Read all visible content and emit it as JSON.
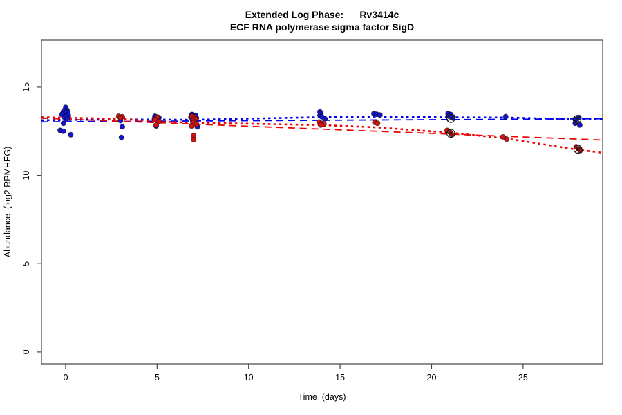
{
  "colors": {
    "blue_point": "#1515cc",
    "red_point": "#cc1414",
    "blue_line": "#0000ee",
    "red_line": "#ee0000",
    "point_edge": "#000000",
    "box_stroke": "#444444",
    "outlier_stroke": "#1a1a1a",
    "background": "#ffffff"
  },
  "chart_data": {
    "type": "scatter",
    "title": "Extended Log Phase:      Rv3414c",
    "subtitle": "ECF RNA polymerase sigma factor SigD",
    "xlabel": "Time  (days)",
    "ylabel": "Abundance  (log2 RPMHEG)",
    "x_ticks": [
      0,
      5,
      10,
      15,
      20,
      25
    ],
    "y_ticks": [
      0,
      5,
      10,
      15
    ],
    "xlim": [
      -1.32,
      29.35
    ],
    "ylim": [
      -0.67,
      17.66
    ],
    "grid": false,
    "legend": "none",
    "series": [
      {
        "name": "blue-condition",
        "color": "#1515cc",
        "marker": "filled-circle",
        "points": [
          [
            -0.15,
            13.52
          ],
          [
            0.0,
            13.85
          ],
          [
            0.07,
            13.7
          ],
          [
            -0.1,
            13.65
          ],
          [
            0.12,
            13.6
          ],
          [
            -0.02,
            13.55
          ],
          [
            -0.2,
            13.45
          ],
          [
            0.15,
            13.4
          ],
          [
            0.02,
            13.35
          ],
          [
            -0.08,
            13.3
          ],
          [
            0.1,
            13.22
          ],
          [
            -0.12,
            12.95
          ],
          [
            -0.3,
            12.55
          ],
          [
            -0.12,
            12.5
          ],
          [
            0.28,
            12.3
          ],
          [
            3.0,
            13.1
          ],
          [
            3.1,
            12.75
          ],
          [
            3.05,
            12.15
          ],
          [
            4.88,
            13.35
          ],
          [
            5.0,
            13.3
          ],
          [
            5.1,
            13.27
          ],
          [
            4.85,
            13.2
          ],
          [
            5.05,
            13.15
          ],
          [
            4.95,
            12.8
          ],
          [
            6.9,
            13.45
          ],
          [
            7.1,
            13.4
          ],
          [
            7.0,
            13.35
          ],
          [
            6.85,
            13.3
          ],
          [
            7.15,
            13.25
          ],
          [
            7.0,
            13.15
          ],
          [
            6.95,
            13.05
          ],
          [
            7.05,
            12.95
          ],
          [
            6.9,
            12.82
          ],
          [
            7.2,
            12.75
          ],
          [
            13.9,
            13.6
          ],
          [
            13.95,
            13.5
          ],
          [
            13.9,
            13.4
          ],
          [
            14.0,
            13.32
          ],
          [
            14.18,
            13.2
          ],
          [
            16.85,
            13.5
          ],
          [
            17.0,
            13.46
          ],
          [
            17.18,
            13.42
          ],
          [
            20.9,
            13.5
          ],
          [
            21.05,
            13.45
          ],
          [
            20.95,
            13.35
          ],
          [
            21.18,
            13.3
          ],
          [
            24.05,
            13.33
          ],
          [
            28.05,
            13.28
          ],
          [
            27.9,
            13.18
          ],
          [
            27.85,
            12.95
          ],
          [
            28.1,
            12.85
          ]
        ]
      },
      {
        "name": "red-condition",
        "color": "#cc1414",
        "marker": "filled-circle",
        "points": [
          [
            2.9,
            13.35
          ],
          [
            3.1,
            13.32
          ],
          [
            3.0,
            13.28
          ],
          [
            5.0,
            13.3
          ],
          [
            4.9,
            13.15
          ],
          [
            5.1,
            13.05
          ],
          [
            4.95,
            12.85
          ],
          [
            6.9,
            13.35
          ],
          [
            7.05,
            13.3
          ],
          [
            7.1,
            13.2
          ],
          [
            6.95,
            13.1
          ],
          [
            7.0,
            13.0
          ],
          [
            7.15,
            12.9
          ],
          [
            6.88,
            12.8
          ],
          [
            7.0,
            12.25
          ],
          [
            7.0,
            12.02
          ],
          [
            13.85,
            13.02
          ],
          [
            14.0,
            12.95
          ],
          [
            14.12,
            12.9
          ],
          [
            13.95,
            12.85
          ],
          [
            16.9,
            13.0
          ],
          [
            17.05,
            12.95
          ],
          [
            20.85,
            12.55
          ],
          [
            21.0,
            12.45
          ],
          [
            21.12,
            12.3
          ],
          [
            23.9,
            12.18
          ],
          [
            24.1,
            12.05
          ],
          [
            27.9,
            11.62
          ],
          [
            28.05,
            11.5
          ],
          [
            28.12,
            11.4
          ]
        ]
      }
    ],
    "trend_lines": [
      {
        "name": "blue-dashed-fit",
        "color": "#0000ee",
        "style": "dashed",
        "points": [
          [
            -1.32,
            13.03
          ],
          [
            29.35,
            13.21
          ]
        ]
      },
      {
        "name": "blue-dotted-fit",
        "color": "#0000ee",
        "style": "dotted",
        "points": [
          [
            -1.32,
            13.12
          ],
          [
            3,
            13.17
          ],
          [
            7,
            13.15
          ],
          [
            14,
            13.3
          ],
          [
            17,
            13.33
          ],
          [
            21,
            13.29
          ],
          [
            24,
            13.28
          ],
          [
            28,
            13.17
          ],
          [
            29.35,
            13.2
          ]
        ]
      },
      {
        "name": "red-dashed-fit",
        "color": "#ee0000",
        "style": "dashed",
        "points": [
          [
            -1.32,
            13.24
          ],
          [
            29.35,
            12.0
          ]
        ]
      },
      {
        "name": "red-dotted-fit",
        "color": "#ee0000",
        "style": "dotted",
        "points": [
          [
            -1.32,
            13.3
          ],
          [
            3,
            13.2
          ],
          [
            5,
            13.05
          ],
          [
            7,
            12.98
          ],
          [
            14,
            12.85
          ],
          [
            17,
            12.72
          ],
          [
            21,
            12.42
          ],
          [
            24,
            12.1
          ],
          [
            28,
            11.45
          ],
          [
            29.35,
            11.28
          ]
        ]
      }
    ],
    "outlier_markers": {
      "shape": "circle-with-x",
      "color": "#1a1a1a",
      "points": [
        [
          21.05,
          13.22
        ],
        [
          21.05,
          12.38
        ],
        [
          27.95,
          13.17
        ],
        [
          28.0,
          11.48
        ]
      ]
    }
  }
}
